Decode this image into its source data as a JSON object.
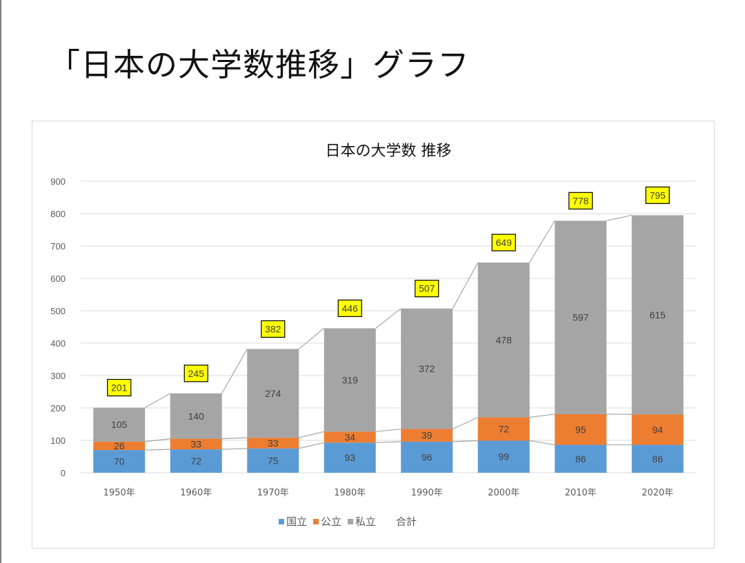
{
  "slide": {
    "title": "「日本の大学数推移」グラフ"
  },
  "chart_data": {
    "type": "bar",
    "stacked": true,
    "title": "日本の大学数 推移",
    "xlabel": "",
    "ylabel": "",
    "ylim": [
      0,
      900
    ],
    "yticks": [
      0,
      100,
      200,
      300,
      400,
      500,
      600,
      700,
      800,
      900
    ],
    "grid": true,
    "legend_position": "bottom",
    "categories": [
      "1950年",
      "1960年",
      "1970年",
      "1980年",
      "1990年",
      "2000年",
      "2010年",
      "2020年"
    ],
    "series": [
      {
        "name": "国立",
        "color": "#5b9bd5",
        "values": [
          70,
          72,
          75,
          93,
          96,
          99,
          86,
          86
        ]
      },
      {
        "name": "公立",
        "color": "#ed7d31",
        "values": [
          26,
          33,
          33,
          34,
          39,
          72,
          95,
          94
        ]
      },
      {
        "name": "私立",
        "color": "#a5a5a5",
        "values": [
          105,
          140,
          274,
          319,
          372,
          478,
          597,
          615
        ]
      }
    ],
    "totals": {
      "name": "合計",
      "values": [
        201,
        245,
        382,
        446,
        507,
        649,
        778,
        795
      ],
      "label_background": "#ffff00",
      "label_border": "#000000"
    },
    "series_lines": true
  }
}
